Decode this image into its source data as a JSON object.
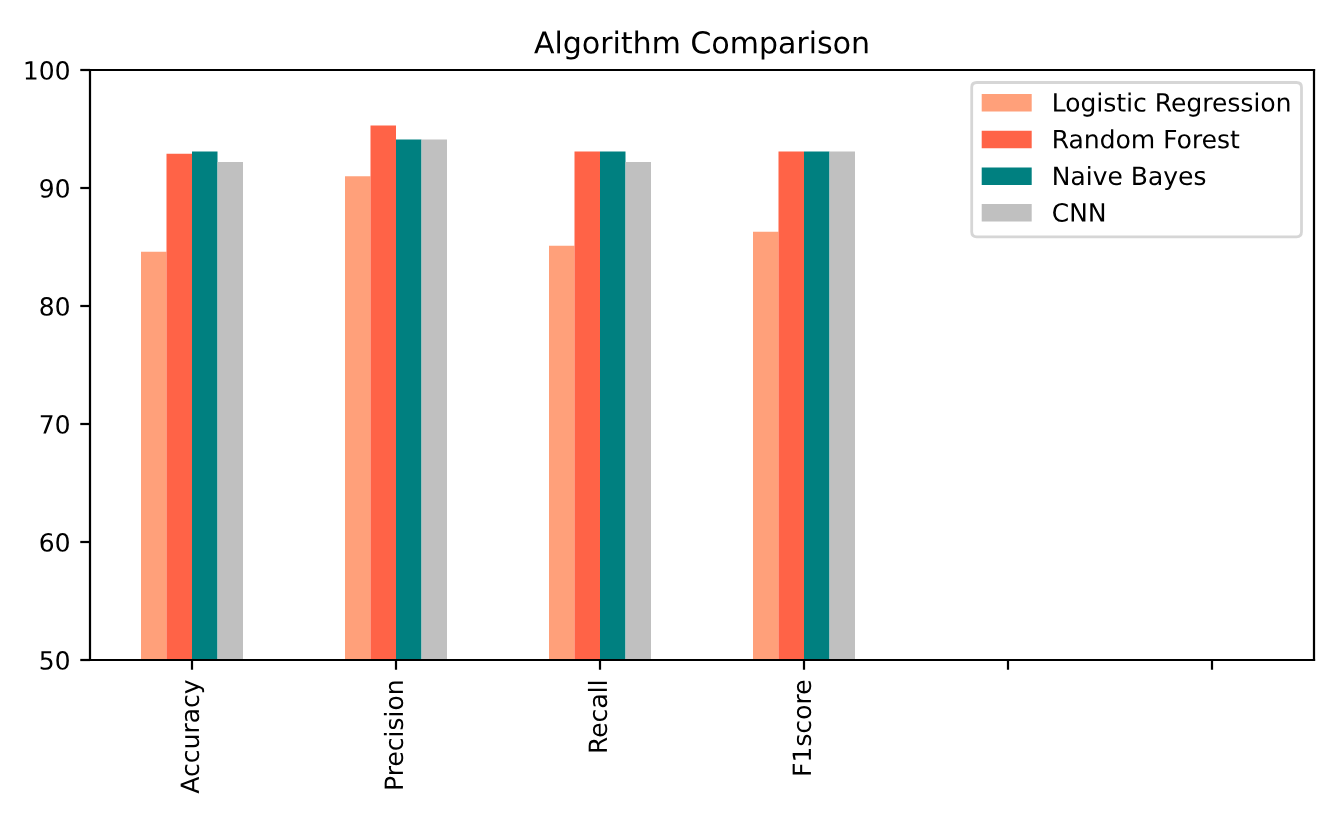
{
  "chart_data": {
    "type": "bar",
    "title": "Algorithm Comparison",
    "categories": [
      "Accuracy",
      "Precision",
      "Recall",
      "F1score",
      null,
      null
    ],
    "series": [
      {
        "name": "Logistic Regression",
        "color": "#ffa07a",
        "values": [
          84.6,
          91.0,
          85.1,
          86.3,
          null,
          null
        ]
      },
      {
        "name": "Random Forest",
        "color": "#ff6347",
        "values": [
          92.9,
          95.3,
          93.1,
          93.1,
          null,
          null
        ]
      },
      {
        "name": "Naive Bayes",
        "color": "#008080",
        "values": [
          93.1,
          94.1,
          93.1,
          93.1,
          null,
          null
        ]
      },
      {
        "name": "CNN",
        "color": "#c0c0c0",
        "values": [
          92.2,
          94.1,
          92.2,
          93.1,
          null,
          null
        ]
      }
    ],
    "ylim": [
      50,
      100
    ],
    "yticks": [
      50,
      60,
      70,
      80,
      90,
      100
    ],
    "grid": false,
    "legend": "top right"
  }
}
